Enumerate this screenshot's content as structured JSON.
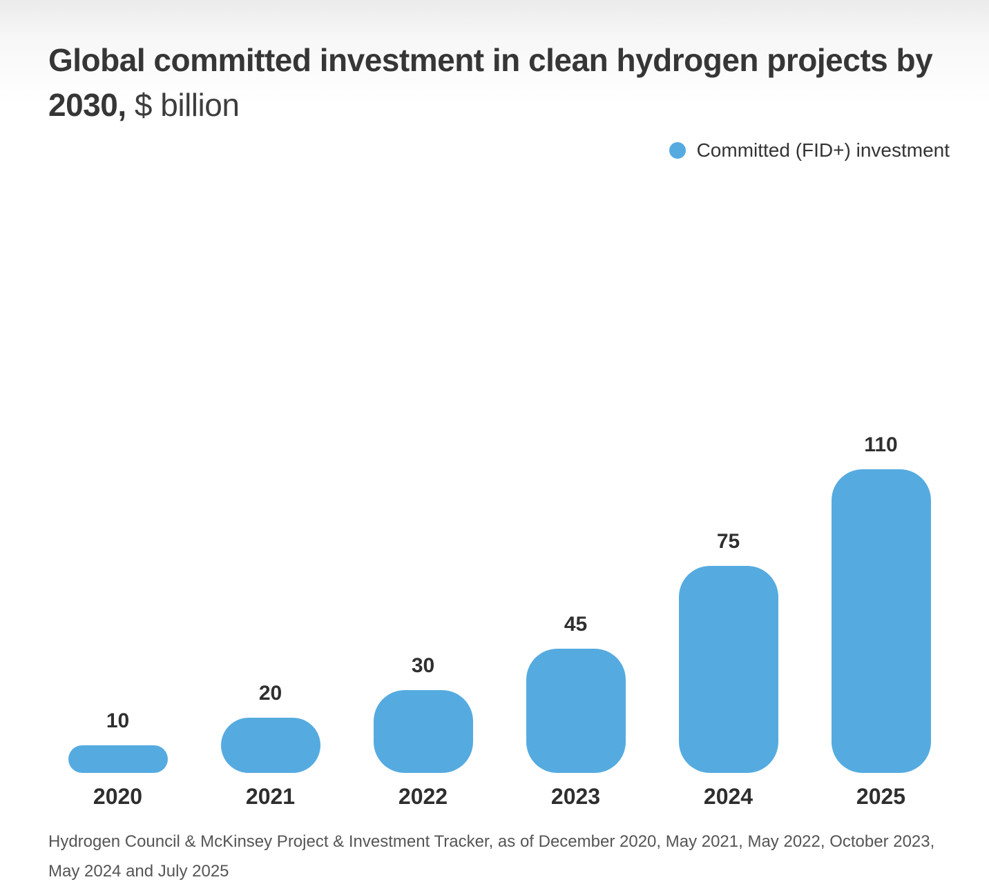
{
  "title": {
    "bold": "Global committed investment in clean hydrogen projects by 2030,",
    "light": " $ billion"
  },
  "legend": {
    "label": "Committed (FID+) investment",
    "color": "#55ABE0"
  },
  "chart_data": {
    "type": "bar",
    "categories": [
      "2020",
      "2021",
      "2022",
      "2023",
      "2024",
      "2025"
    ],
    "values": [
      10,
      20,
      30,
      45,
      75,
      110
    ],
    "data_labels": [
      "10",
      "20",
      "30",
      "45",
      "75",
      "110"
    ],
    "title": "Global committed investment in clean hydrogen projects by 2030, $ billion",
    "xlabel": "",
    "ylabel": "$ billion",
    "ylim": [
      0,
      120
    ],
    "grid": false,
    "bar_color": "#55ABE0",
    "legend_entries": [
      "Committed (FID+) investment"
    ],
    "legend_position": "top-right"
  },
  "source": {
    "text": "Hydrogen Council & McKinsey Project & Investment Tracker, as of December 2020, May 2021, May 2022, October 2023, May 2024 and July 2025"
  }
}
